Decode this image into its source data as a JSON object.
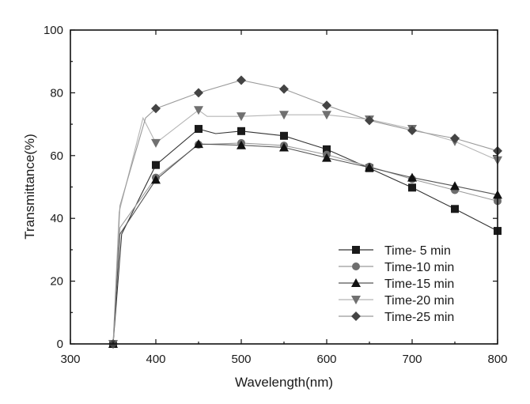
{
  "chart_data": {
    "type": "line",
    "title": "",
    "xlabel": "Wavelength(nm)",
    "ylabel": "Transmittance(%)",
    "xlim": [
      300,
      800
    ],
    "ylim": [
      0,
      100
    ],
    "xticks": [
      300,
      400,
      500,
      600,
      700,
      800
    ],
    "yticks": [
      0,
      20,
      40,
      60,
      80,
      100
    ],
    "grid": false,
    "legend_position": "bottom-right",
    "series": [
      {
        "name": "Time- 5  min",
        "marker": "square",
        "color": "#1a1a1a",
        "line_color": "#333333",
        "x": [
          350,
          360,
          400,
          450,
          470,
          500,
          550,
          600,
          650,
          700,
          750,
          800
        ],
        "y": [
          0,
          35,
          57,
          68.5,
          67,
          67.8,
          66.3,
          62,
          56,
          49.8,
          43,
          36
        ],
        "marker_x": [
          400,
          450,
          500,
          550,
          600,
          650,
          700,
          750,
          800
        ]
      },
      {
        "name": "Time-10 min",
        "marker": "circle",
        "color": "#6e6e6e",
        "line_color": "#9a9a9a",
        "x": [
          350,
          358,
          400,
          450,
          500,
          550,
          600,
          650,
          700,
          750,
          800
        ],
        "y": [
          0,
          37,
          53,
          63.5,
          64,
          63.2,
          60.3,
          56.5,
          52.5,
          49,
          45.5
        ],
        "marker_x": [
          400,
          450,
          500,
          550,
          600,
          650,
          700,
          750,
          800
        ]
      },
      {
        "name": "Time-15 min",
        "marker": "triangle-up",
        "color": "#111111",
        "line_color": "#555555",
        "x": [
          350,
          358,
          400,
          450,
          500,
          550,
          600,
          650,
          700,
          750,
          800
        ],
        "y": [
          0,
          35,
          52.3,
          63.7,
          63.3,
          62.6,
          59.3,
          56.2,
          53,
          50.3,
          47.5
        ],
        "marker_x": [
          400,
          450,
          500,
          550,
          600,
          650,
          700,
          750,
          800
        ]
      },
      {
        "name": "Time-20 min",
        "marker": "triangle-down",
        "color": "#707070",
        "line_color": "#b5b5b5",
        "x": [
          350,
          357,
          385,
          400,
          450,
          460,
          500,
          550,
          600,
          650,
          700,
          750,
          800
        ],
        "y": [
          0,
          42,
          72,
          64,
          74.5,
          72.5,
          72.5,
          73,
          73,
          71.5,
          68.5,
          64.5,
          58.5
        ],
        "marker_x": [
          400,
          450,
          500,
          550,
          600,
          650,
          700,
          750,
          800
        ]
      },
      {
        "name": "Time-25 min",
        "marker": "diamond",
        "color": "#444444",
        "line_color": "#9a9a9a",
        "x": [
          350,
          358,
          388,
          400,
          450,
          500,
          550,
          600,
          650,
          700,
          750,
          800
        ],
        "y": [
          0,
          44,
          72,
          75,
          80,
          84,
          81.2,
          76,
          71.2,
          68,
          65.5,
          61.5
        ],
        "marker_x": [
          400,
          450,
          500,
          550,
          600,
          650,
          700,
          750,
          800
        ]
      }
    ]
  }
}
